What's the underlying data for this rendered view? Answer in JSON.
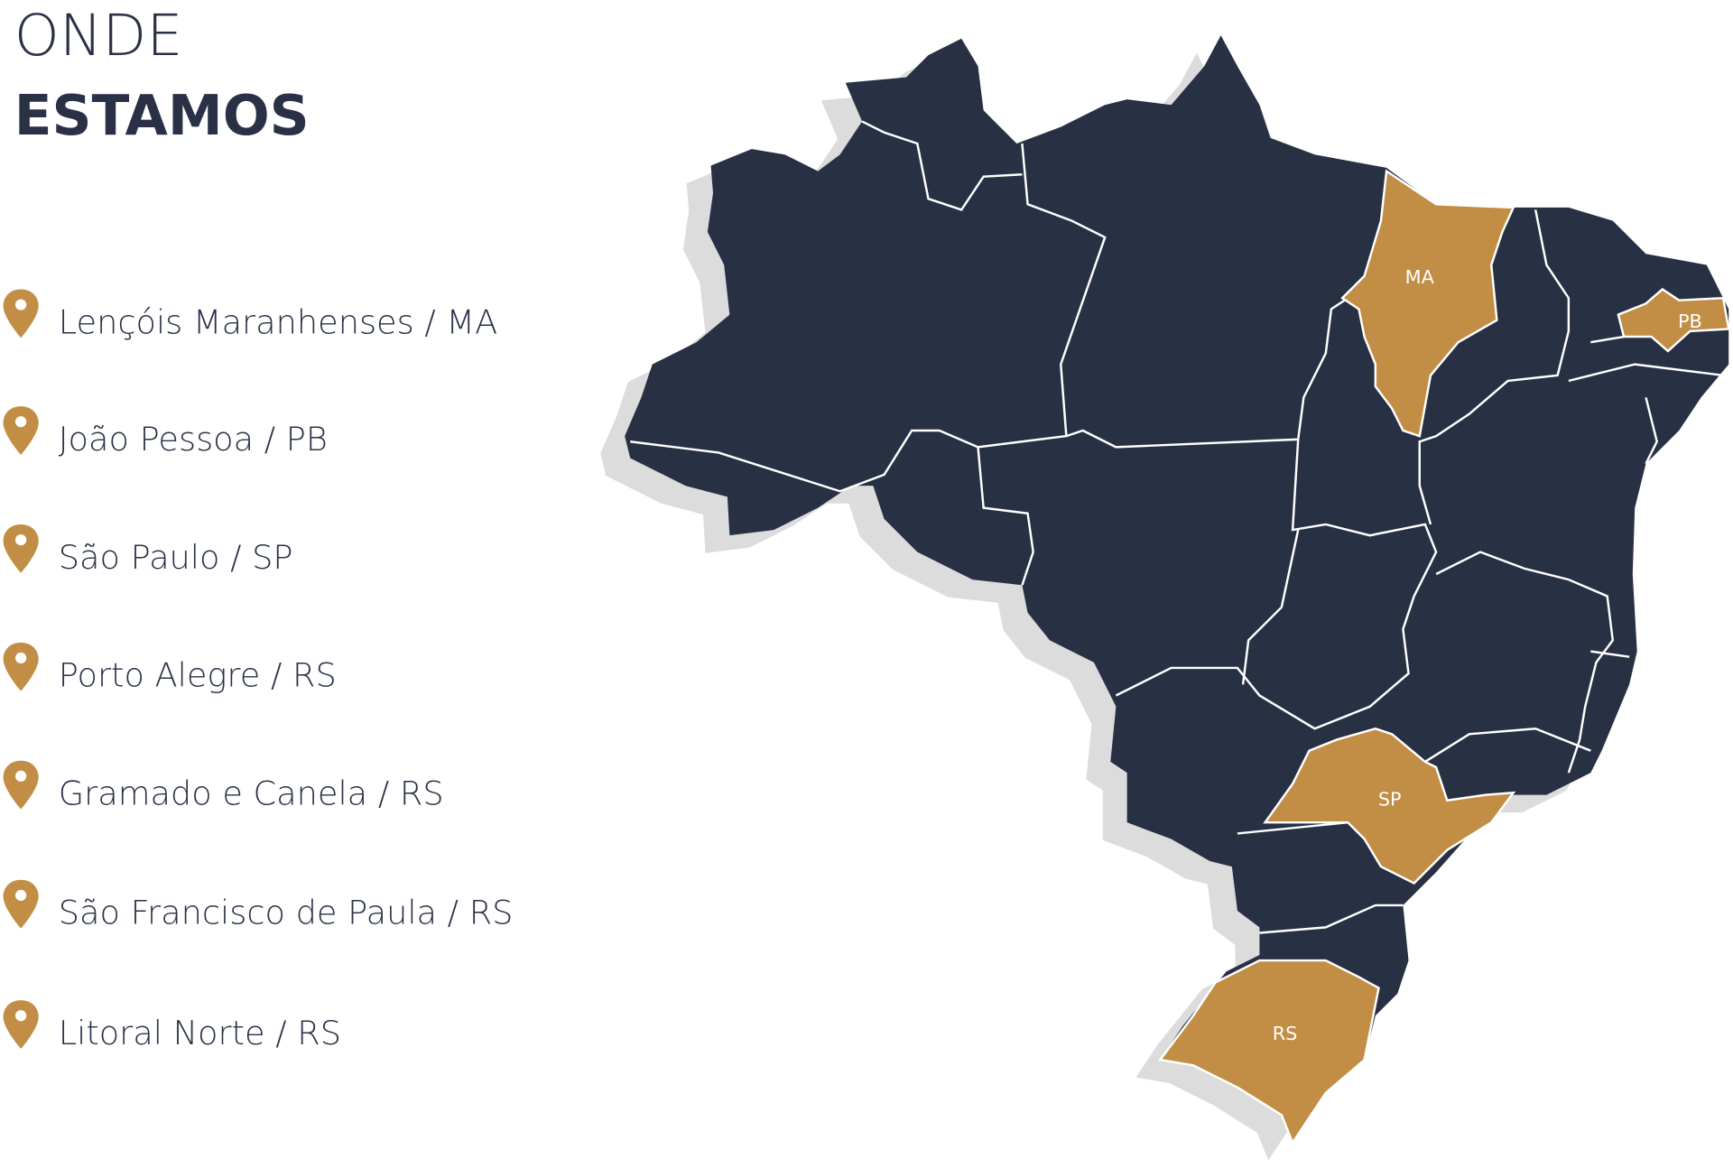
{
  "heading": {
    "line1": "ONDE",
    "line2": "ESTAMOS"
  },
  "locations": [
    "Lençóis Maranhenses / MA",
    "João Pessoa / PB",
    "São Paulo / SP",
    "Porto Alegre / RS",
    "Gramado e Canela / RS",
    "São Francisco de Paula / RS",
    "Litoral Norte / RS"
  ],
  "map": {
    "labels": [
      "MA",
      "PB",
      "SP",
      "RS"
    ]
  }
}
